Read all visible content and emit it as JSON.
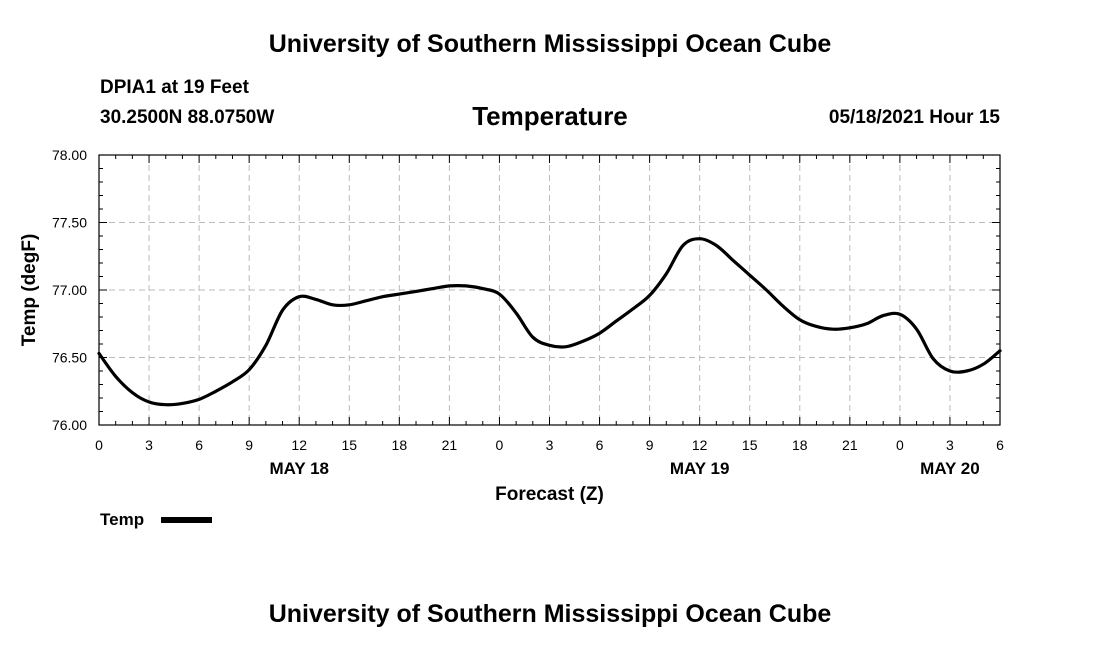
{
  "header": {
    "title": "University of Southern Mississippi Ocean Cube",
    "station": "DPIA1 at 19 Feet",
    "coordinates": "30.2500N  88.0750W",
    "chart_title": "Temperature",
    "datetime": "05/18/2021 Hour 15"
  },
  "footer": {
    "title": "University of Southern Mississippi Ocean Cube"
  },
  "legend": {
    "label": "Temp",
    "color": "#000000"
  },
  "chart_data": {
    "type": "line",
    "title": "Temperature",
    "xlabel": "Forecast (Z)",
    "ylabel": "Temp (degF)",
    "xlim": [
      0,
      54
    ],
    "ylim": [
      76.0,
      78.0
    ],
    "grid": true,
    "x_ticks": [
      0,
      3,
      6,
      9,
      12,
      15,
      18,
      21,
      24,
      27,
      30,
      33,
      36,
      39,
      42,
      45,
      48,
      51,
      54
    ],
    "x_tick_labels": [
      "0",
      "3",
      "6",
      "9",
      "12",
      "15",
      "18",
      "21",
      "0",
      "3",
      "6",
      "9",
      "12",
      "15",
      "18",
      "21",
      "0",
      "3",
      "6"
    ],
    "y_ticks": [
      76.0,
      76.5,
      77.0,
      77.5,
      78.0
    ],
    "y_tick_labels": [
      "76.00",
      "76.50",
      "77.00",
      "77.50",
      "78.00"
    ],
    "date_labels": [
      {
        "x": 12,
        "label": "MAY 18"
      },
      {
        "x": 36,
        "label": "MAY 19"
      },
      {
        "x": 51,
        "label": "MAY 20"
      }
    ],
    "series": [
      {
        "name": "Temp",
        "x": [
          0,
          1,
          2,
          3,
          4,
          5,
          6,
          7,
          8,
          9,
          10,
          11,
          12,
          13,
          14,
          15,
          16,
          17,
          18,
          19,
          20,
          21,
          22,
          23,
          24,
          25,
          26,
          27,
          28,
          29,
          30,
          31,
          32,
          33,
          34,
          35,
          36,
          37,
          38,
          39,
          40,
          41,
          42,
          43,
          44,
          45,
          46,
          47,
          48,
          49,
          50,
          51,
          52,
          53,
          54
        ],
        "values": [
          76.53,
          76.36,
          76.24,
          76.17,
          76.15,
          76.16,
          76.19,
          76.25,
          76.32,
          76.41,
          76.59,
          76.85,
          76.95,
          76.93,
          76.89,
          76.89,
          76.92,
          76.95,
          76.97,
          76.99,
          77.01,
          77.03,
          77.03,
          77.01,
          76.97,
          76.83,
          76.65,
          76.59,
          76.58,
          76.62,
          76.68,
          76.77,
          76.86,
          76.96,
          77.12,
          77.33,
          77.38,
          77.33,
          77.22,
          77.11,
          77.0,
          76.88,
          76.78,
          76.73,
          76.71,
          76.72,
          76.75,
          76.81,
          76.82,
          76.71,
          76.49,
          76.4,
          76.4,
          76.45,
          76.55
        ]
      }
    ]
  }
}
